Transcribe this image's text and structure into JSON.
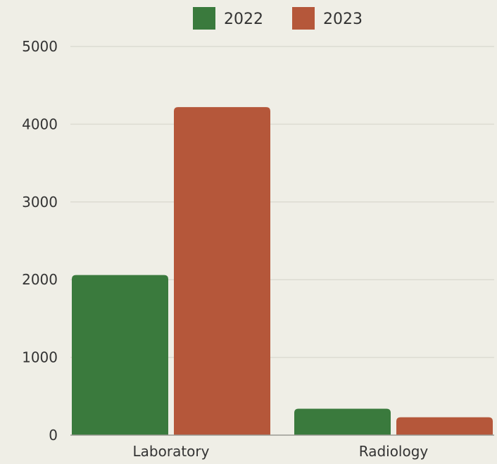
{
  "chart_data": {
    "type": "bar",
    "title": "",
    "xlabel": "",
    "ylabel": "",
    "categories": [
      "Laboratory",
      "Radiology"
    ],
    "series": [
      {
        "name": "2022",
        "color": "#3a7a3d",
        "values": [
          2060,
          340
        ]
      },
      {
        "name": "2023",
        "color": "#b5573a",
        "values": [
          4220,
          230
        ]
      }
    ],
    "ylim": [
      0,
      5000
    ],
    "yticks": [
      "0",
      "1000",
      "2000",
      "3000",
      "4000",
      "5000"
    ],
    "grid": true,
    "legend_position": "top-center"
  }
}
